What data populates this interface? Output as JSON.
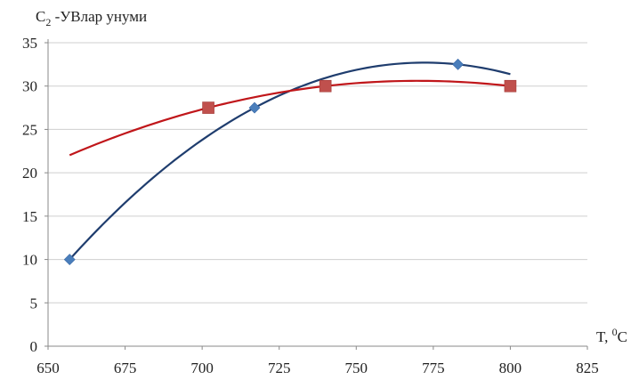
{
  "chart_data": {
    "type": "scatter",
    "ylabel": {
      "base": "C",
      "sub": "2",
      "rest": " -УВлар унуми"
    },
    "xlabel": {
      "base": "T, ",
      "sup": "0",
      "rest": "C"
    },
    "xlim": [
      650,
      825
    ],
    "ylim": [
      0,
      35
    ],
    "xticks": [
      650,
      675,
      700,
      725,
      750,
      775,
      800,
      825
    ],
    "yticks": [
      0,
      5,
      10,
      15,
      20,
      25,
      30,
      35
    ],
    "grid": "horizontal",
    "series": [
      {
        "marker": "diamond",
        "color": "#4a7ebb",
        "line_color": "#1f3d6e",
        "points": [
          [
            657,
            10
          ],
          [
            717,
            27.5
          ],
          [
            783,
            32.5
          ]
        ],
        "trend_x_range": [
          657,
          800
        ]
      },
      {
        "marker": "square",
        "color": "#c0504d",
        "line_color": "#c0161a",
        "points": [
          [
            702,
            27.5
          ],
          [
            740,
            30
          ],
          [
            800,
            30
          ]
        ],
        "trend_x_range": [
          657,
          800
        ]
      }
    ]
  }
}
